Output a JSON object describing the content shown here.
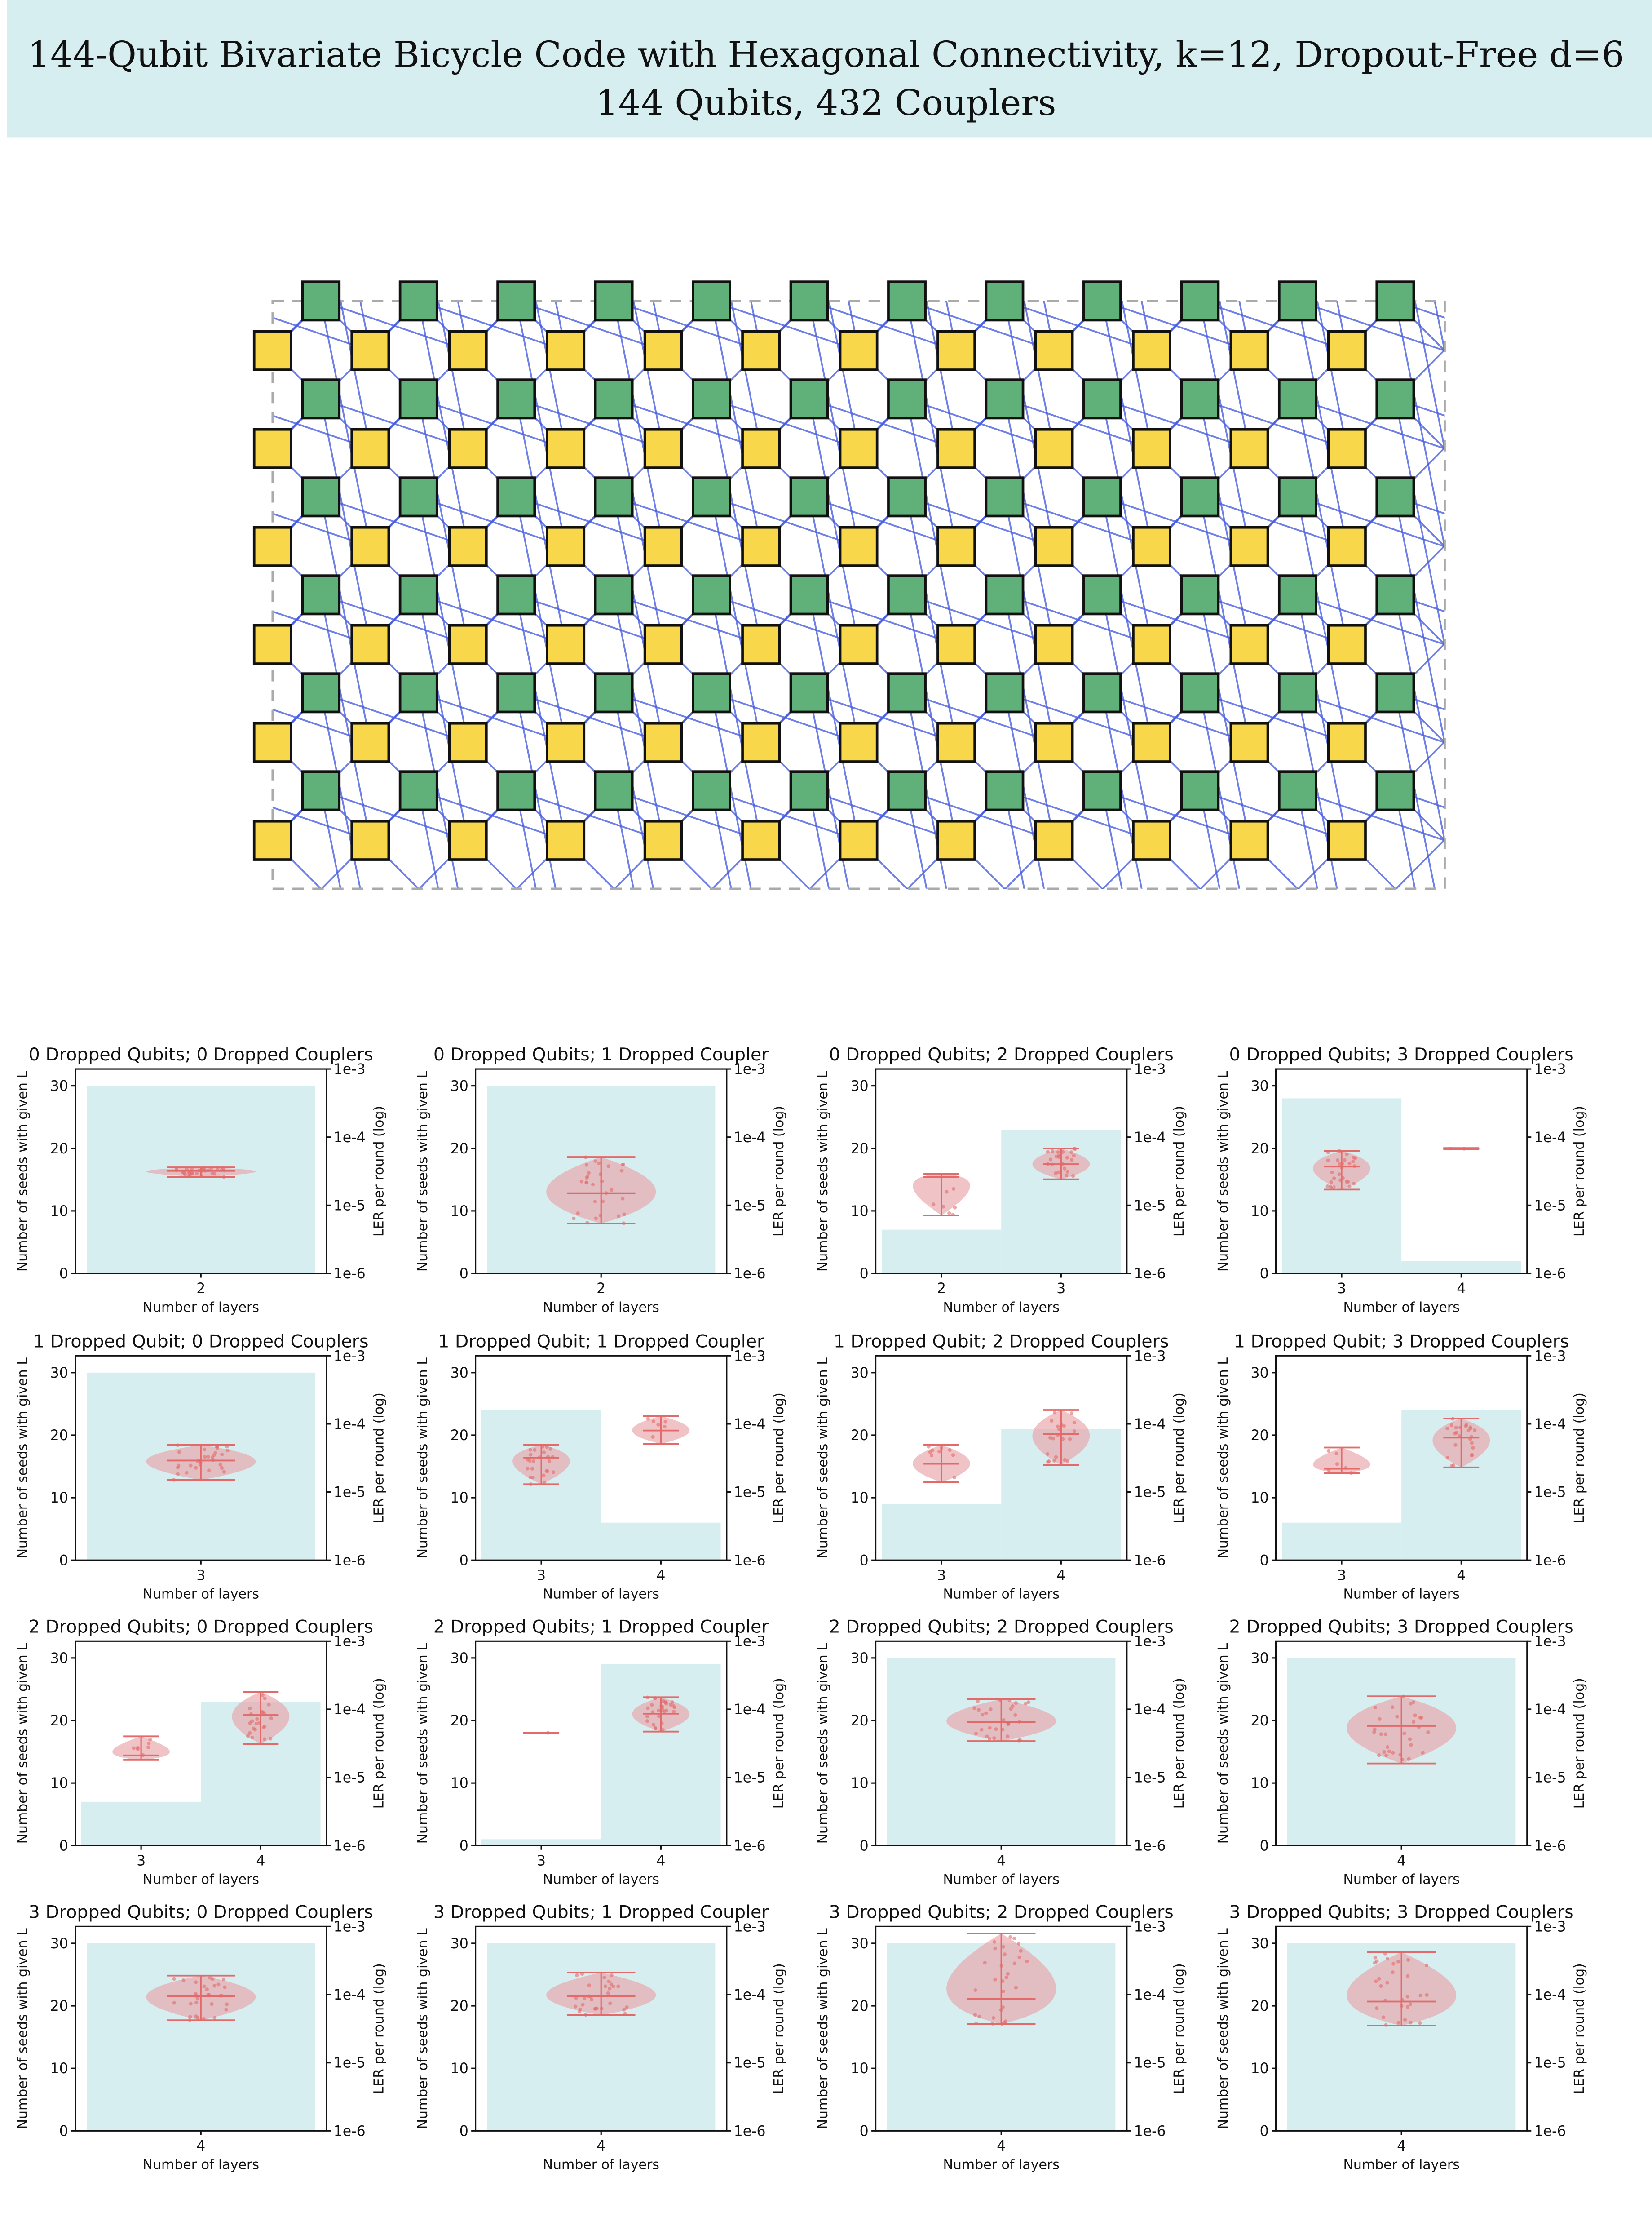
{
  "header": {
    "title": "144-Qubit Bivariate Bicycle Code with Hexagonal Connectivity, k=12, Dropout-Free d=6",
    "subtitle": "144 Qubits, 432 Couplers",
    "background": "#d7eef0"
  },
  "lattice": {
    "columns": 12,
    "rows": 6,
    "data_qubit_color": "#f8d84a",
    "check_qubit_color": "#5fb079",
    "coupler_color": "#4a5fe0",
    "boundary_color": "#aaaaaa"
  },
  "panel_axes": {
    "xlabel": "Number of layers",
    "ylabel_left": "Number of seeds with given L",
    "ylabel_right": "LER per round (log)",
    "left_ticks": [
      "0",
      "10",
      "20",
      "30"
    ],
    "right_ticks": [
      "1e-6",
      "1e-5",
      "1e-4",
      "1e-3"
    ],
    "bar_color": "#d7eef0",
    "violin_color": "#e8a3a8",
    "point_color": "#e36a6a"
  },
  "chart_data": [
    {
      "type": "bar+violin",
      "title": "0 Dropped Qubits; 0 Dropped Couplers",
      "categories": [
        2
      ],
      "counts": [
        30
      ],
      "ler": [
        {
          "median": 3.2e-05,
          "min": 2.6e-05,
          "max": 3.6e-05
        }
      ]
    },
    {
      "type": "bar+violin",
      "title": "0 Dropped Qubits; 1 Dropped Coupler",
      "categories": [
        2
      ],
      "counts": [
        30
      ],
      "ler": [
        {
          "median": 1.5e-05,
          "min": 5.4e-06,
          "max": 5.1e-05
        }
      ]
    },
    {
      "type": "bar+violin",
      "title": "0 Dropped Qubits; 2 Dropped Couplers",
      "categories": [
        2,
        3
      ],
      "counts": [
        7,
        23
      ],
      "ler": [
        {
          "median": 2.6e-05,
          "min": 7.1e-06,
          "max": 2.9e-05
        },
        {
          "median": 4e-05,
          "min": 2.4e-05,
          "max": 6.8e-05
        }
      ]
    },
    {
      "type": "bar+violin",
      "title": "0 Dropped Qubits; 3 Dropped Couplers",
      "categories": [
        3,
        4
      ],
      "counts": [
        28,
        2
      ],
      "ler": [
        {
          "median": 3.7e-05,
          "min": 1.7e-05,
          "max": 6.3e-05
        },
        {
          "median": 6.8e-05,
          "min": 6.7e-05,
          "max": 6.9e-05
        }
      ]
    },
    {
      "type": "bar+violin",
      "title": "1 Dropped Qubit; 0 Dropped Couplers",
      "categories": [
        3
      ],
      "counts": [
        30
      ],
      "ler": [
        {
          "median": 2.9e-05,
          "min": 1.5e-05,
          "max": 4.9e-05
        }
      ]
    },
    {
      "type": "bar+violin",
      "title": "1 Dropped Qubit; 1 Dropped Coupler",
      "categories": [
        3,
        4
      ],
      "counts": [
        24,
        6
      ],
      "ler": [
        {
          "median": 3.2e-05,
          "min": 1.3e-05,
          "max": 4.9e-05
        },
        {
          "median": 8e-05,
          "min": 5.1e-05,
          "max": 0.00013
        }
      ]
    },
    {
      "type": "bar+violin",
      "title": "1 Dropped Qubit; 2 Dropped Couplers",
      "categories": [
        3,
        4
      ],
      "counts": [
        9,
        21
      ],
      "ler": [
        {
          "median": 2.6e-05,
          "min": 1.4e-05,
          "max": 4.9e-05
        },
        {
          "median": 7.1e-05,
          "min": 2.5e-05,
          "max": 0.00016
        }
      ]
    },
    {
      "type": "bar+violin",
      "title": "1 Dropped Qubit; 3 Dropped Couplers",
      "categories": [
        3,
        4
      ],
      "counts": [
        6,
        24
      ],
      "ler": [
        {
          "median": 2.2e-05,
          "min": 1.9e-05,
          "max": 4.5e-05
        },
        {
          "median": 6.3e-05,
          "min": 2.3e-05,
          "max": 0.00012
        }
      ]
    },
    {
      "type": "bar+violin",
      "title": "2 Dropped Qubits; 0 Dropped Couplers",
      "categories": [
        3,
        4
      ],
      "counts": [
        7,
        23
      ],
      "ler": [
        {
          "median": 2.1e-05,
          "min": 1.8e-05,
          "max": 4e-05
        },
        {
          "median": 8.2e-05,
          "min": 3.1e-05,
          "max": 0.00018
        }
      ]
    },
    {
      "type": "bar+violin",
      "title": "2 Dropped Qubits; 1 Dropped Coupler",
      "categories": [
        3,
        4
      ],
      "counts": [
        1,
        29
      ],
      "ler": [
        {
          "median": 4.5e-05,
          "min": 4.5e-05,
          "max": 4.5e-05
        },
        {
          "median": 8.6e-05,
          "min": 4.7e-05,
          "max": 0.00015
        }
      ]
    },
    {
      "type": "bar+violin",
      "title": "2 Dropped Qubits; 2 Dropped Couplers",
      "categories": [
        4
      ],
      "counts": [
        30
      ],
      "ler": [
        {
          "median": 6.5e-05,
          "min": 3.4e-05,
          "max": 0.00014
        }
      ]
    },
    {
      "type": "bar+violin",
      "title": "2 Dropped Qubits; 3 Dropped Couplers",
      "categories": [
        4
      ],
      "counts": [
        30
      ],
      "ler": [
        {
          "median": 5.7e-05,
          "min": 1.6e-05,
          "max": 0.000155
        }
      ]
    },
    {
      "type": "bar+violin",
      "title": "3 Dropped Qubits; 0 Dropped Couplers",
      "categories": [
        4
      ],
      "counts": [
        30
      ],
      "ler": [
        {
          "median": 9.5e-05,
          "min": 4.2e-05,
          "max": 0.00019
        }
      ]
    },
    {
      "type": "bar+violin",
      "title": "3 Dropped Qubits; 1 Dropped Coupler",
      "categories": [
        4
      ],
      "counts": [
        30
      ],
      "ler": [
        {
          "median": 9.5e-05,
          "min": 5e-05,
          "max": 0.00021
        }
      ]
    },
    {
      "type": "bar+violin",
      "title": "3 Dropped Qubits; 2 Dropped Couplers",
      "categories": [
        4
      ],
      "counts": [
        30
      ],
      "ler": [
        {
          "median": 8.7e-05,
          "min": 3.7e-05,
          "max": 0.00079
        }
      ]
    },
    {
      "type": "bar+violin",
      "title": "3 Dropped Qubits; 3 Dropped Couplers",
      "categories": [
        4
      ],
      "counts": [
        30
      ],
      "ler": [
        {
          "median": 7.9e-05,
          "min": 3.5e-05,
          "max": 0.00042
        }
      ]
    }
  ]
}
